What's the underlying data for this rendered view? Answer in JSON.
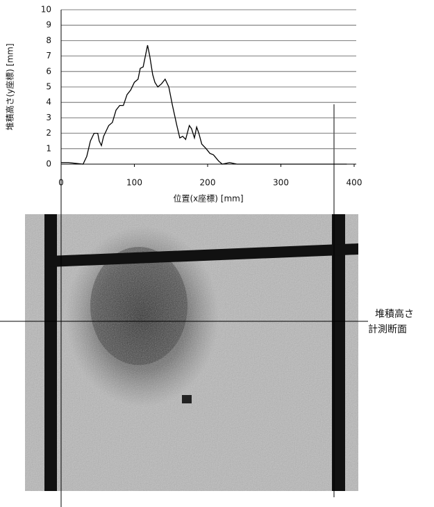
{
  "chart_data": {
    "type": "line",
    "x_label": "位置(x座標) [mm]",
    "y_label": "堆積高さ(y座標) [mm]",
    "annotations": [
      "堆積高さ",
      "計測断面"
    ],
    "x": [
      0,
      10,
      30,
      35,
      40,
      45,
      50,
      52,
      55,
      58,
      60,
      65,
      70,
      75,
      80,
      85,
      90,
      95,
      100,
      105,
      108,
      112,
      115,
      118,
      121,
      125,
      128,
      132,
      137,
      142,
      147,
      152,
      158,
      162,
      166,
      170,
      175,
      178,
      182,
      185,
      188,
      192,
      198,
      203,
      208,
      215,
      220,
      230,
      240,
      300,
      390
    ],
    "series": [
      {
        "color": "#000000",
        "values": [
          0.1,
          0.1,
          0,
          0.5,
          1.5,
          2,
          2,
          1.5,
          1.2,
          1.8,
          2,
          2.5,
          2.7,
          3.5,
          3.8,
          3.8,
          4.5,
          4.8,
          5.3,
          5.5,
          6.2,
          6.3,
          7,
          7.7,
          7,
          5.8,
          5.3,
          5,
          5.2,
          5.5,
          5,
          3.8,
          2.5,
          1.7,
          1.8,
          1.6,
          2.5,
          2.3,
          1.7,
          2.4,
          2,
          1.3,
          1,
          0.7,
          0.6,
          0.2,
          0,
          0.1,
          0,
          0,
          0
        ]
      }
    ],
    "xlim": [
      0,
      400
    ],
    "xticks": [
      0,
      100,
      200,
      300,
      400
    ],
    "ylim": [
      0,
      10
    ],
    "yticks": [
      0,
      1,
      2,
      3,
      4,
      5,
      6,
      7,
      8,
      9,
      10
    ],
    "grid": true
  }
}
